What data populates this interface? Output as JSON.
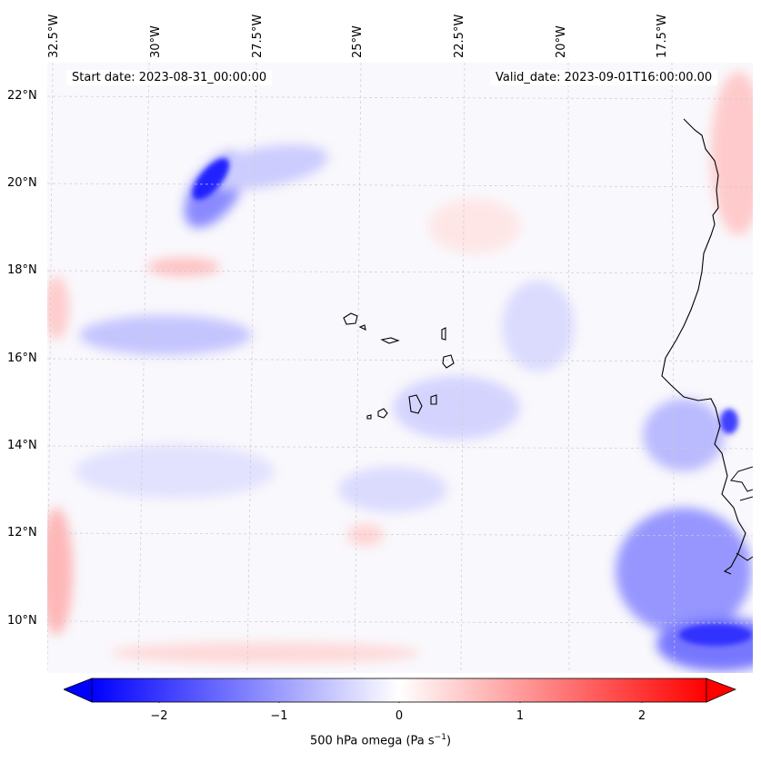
{
  "header": {
    "start_date": "Start date: 2023-08-31_00:00:00",
    "valid_date": "Valid_date: 2023-09-01T16:00:00.00"
  },
  "lon_labels": [
    "32.5°W",
    "30°W",
    "27.5°W",
    "25°W",
    "22.5°W",
    "20°W",
    "17.5°W"
  ],
  "lat_labels": [
    "22°N",
    "20°N",
    "18°N",
    "16°N",
    "14°N",
    "12°N",
    "10°N"
  ],
  "colorbar": {
    "label_main": "500 hPa omega (Pa s",
    "label_sup": "−1",
    "label_tail": ")",
    "ticks": [
      "−2",
      "−1",
      "0",
      "1",
      "2"
    ],
    "range": [
      -2.75,
      2.75
    ],
    "colors": {
      "min": "#0000ff",
      "mid": "#ffffff",
      "max": "#ff0000"
    }
  },
  "colors": {
    "coast": "#000000",
    "grid": "#cccccc"
  }
}
